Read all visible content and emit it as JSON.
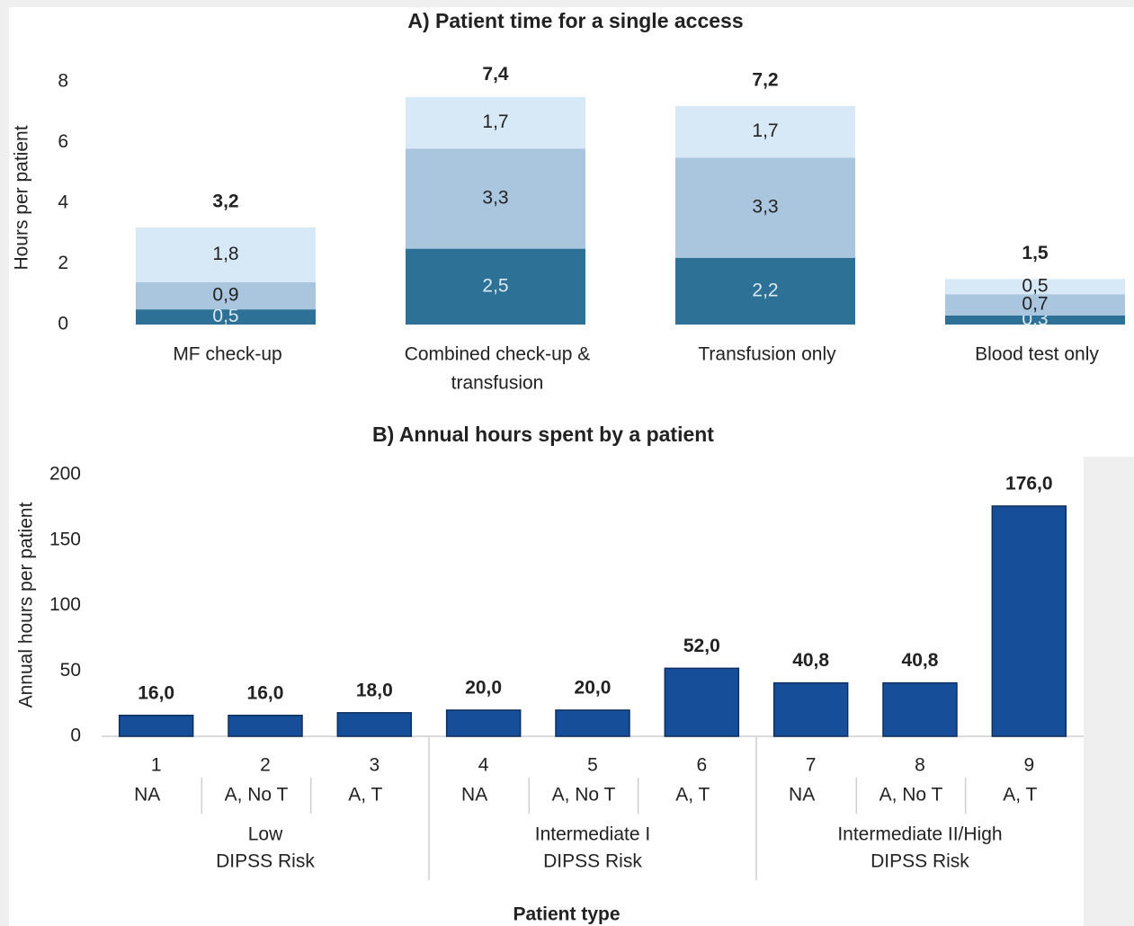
{
  "chart_data": [
    {
      "type": "stacked_bar",
      "title": "A) Patient time for a single access",
      "y_label": "Hours per patient",
      "categories": [
        [
          "MF check-up"
        ],
        [
          "Combined check-up &",
          "transfusion"
        ],
        [
          "Transfusion only"
        ],
        [
          "Blood test only"
        ]
      ],
      "series": [
        {
          "color": "#2e7196",
          "label_color": "#dce9f3",
          "values": [
            0.5,
            2.5,
            2.2,
            0.3
          ],
          "value_labels": [
            "0,5",
            "2,5",
            "2,2",
            "0,3"
          ]
        },
        {
          "color": "#aac6de",
          "label_color": "#222222",
          "values": [
            0.9,
            3.3,
            3.3,
            0.7
          ],
          "value_labels": [
            "0,9",
            "3,3",
            "3,3",
            "0,7"
          ]
        },
        {
          "color": "#d7e9f7",
          "label_color": "#222222",
          "values": [
            1.8,
            1.7,
            1.7,
            0.5
          ],
          "value_labels": [
            "1,8",
            "1,7",
            "1,7",
            "0,5"
          ]
        }
      ],
      "totals": [
        3.2,
        7.4,
        7.2,
        1.5
      ],
      "total_labels": [
        "3,2",
        "7,4",
        "7,2",
        "1,5"
      ],
      "ylim": [
        0,
        8
      ],
      "yticks": [
        0,
        2,
        4,
        6,
        8
      ],
      "grid": false
    },
    {
      "type": "bar",
      "title": "B) Annual hours spent by a patient",
      "y_label": "Annual hours per patient",
      "x_label": "Patient type",
      "categories": [
        "1",
        "2",
        "3",
        "4",
        "5",
        "6",
        "7",
        "8",
        "9"
      ],
      "subcategories": [
        "NA",
        "A, No T",
        "A, T",
        "NA",
        "A, No T",
        "A, T",
        "NA",
        "A, No T",
        "A, T"
      ],
      "groups": [
        [
          "Low",
          "DIPSS Risk"
        ],
        [
          "Intermediate I",
          "DIPSS Risk"
        ],
        [
          "Intermediate II/High",
          "DIPSS Risk"
        ]
      ],
      "values": [
        16.0,
        16.0,
        18.0,
        20.0,
        20.0,
        52.0,
        40.8,
        40.8,
        176.0
      ],
      "value_labels": [
        "16,0",
        "16,0",
        "18,0",
        "20,0",
        "20,0",
        "52,0",
        "40,8",
        "40,8",
        "176,0"
      ],
      "color": "#174e9a",
      "ylim": [
        0,
        200
      ],
      "yticks": [
        0,
        50,
        100,
        150,
        200
      ],
      "grid": false
    }
  ]
}
